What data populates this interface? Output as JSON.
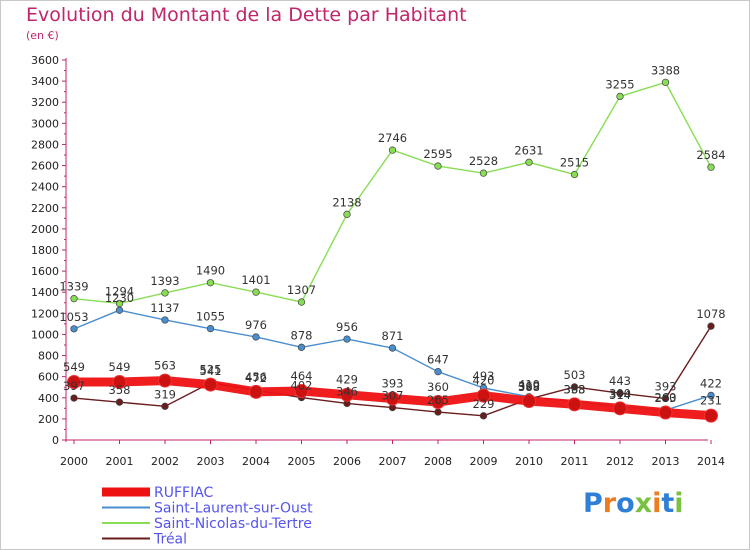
{
  "header": {
    "title": "Evolution du Montant de la Dette par Habitant",
    "subtitle": "(en €)"
  },
  "colors": {
    "title": "#c0266a",
    "legend_text": "#5555ee",
    "RUFFIAC": "#ee1111",
    "Saint-Laurent-sur-Oust": "#4a8ed0",
    "Saint-Nicolas-du-Tertre": "#88dd55",
    "Tréal": "#6b1c1c"
  },
  "logo": {
    "text": "Proxiti",
    "letter_colors": [
      "#2f7fd6",
      "#ee7d1f",
      "#2f7fd6",
      "#7ac143",
      "#ee7d1f",
      "#2f7fd6",
      "#7ac143"
    ]
  },
  "chart_data": {
    "type": "line",
    "title": "Evolution du Montant de la Dette par Habitant",
    "subtitle": "(en €)",
    "x": [
      "2000",
      "2001",
      "2002",
      "2003",
      "2004",
      "2005",
      "2006",
      "2007",
      "2008",
      "2009",
      "2010",
      "2011",
      "2012",
      "2013",
      "2014"
    ],
    "ylim": [
      0,
      3600
    ],
    "ytick_step": 200,
    "grid": false,
    "legend_position": "bottom-left",
    "series": [
      {
        "name": "Saint-Nicolas-du-Tertre",
        "color": "#88dd55",
        "values": [
          1339,
          1294,
          1393,
          1490,
          1401,
          1307,
          2138,
          2746,
          2595,
          2528,
          2631,
          2515,
          3255,
          3388,
          2584
        ]
      },
      {
        "name": "Saint-Laurent-sur-Oust",
        "color": "#4a8ed0",
        "values": [
          1053,
          1230,
          1137,
          1055,
          976,
          878,
          956,
          871,
          647,
          493,
          410,
          363,
          314,
          283,
          422
        ]
      },
      {
        "name": "Tréal",
        "color": "#6b1c1c",
        "values": [
          397,
          358,
          319,
          541,
          472,
          402,
          346,
          307,
          265,
          229,
          388,
          503,
          443,
          393,
          1078
        ]
      },
      {
        "name": "RUFFIAC",
        "color": "#ee1111",
        "values": [
          549,
          549,
          563,
          525,
          456,
          464,
          429,
          393,
          360,
          420,
          369,
          338,
          300,
          260,
          231
        ]
      }
    ],
    "legend_order": [
      "RUFFIAC",
      "Saint-Laurent-sur-Oust",
      "Saint-Nicolas-du-Tertre",
      "Tréal"
    ]
  }
}
